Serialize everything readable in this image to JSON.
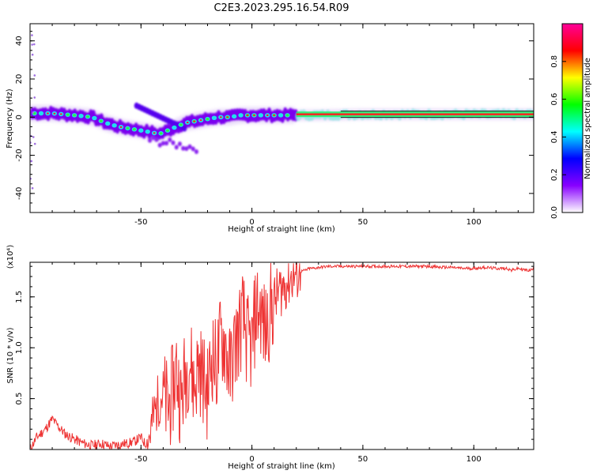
{
  "page_title": "C2E3.2023.295.16.54.R09",
  "colorbar": {
    "label": "Normalized spectral amplitude",
    "ticks": [
      {
        "value": 0.0,
        "label": "0.0"
      },
      {
        "value": 0.2,
        "label": "0.2"
      },
      {
        "value": 0.4,
        "label": "0.4"
      },
      {
        "value": 0.6,
        "label": "0.6"
      },
      {
        "value": 0.8,
        "label": "0.8"
      }
    ],
    "range": [
      0,
      1
    ],
    "colors": [
      "#ffffff",
      "#8800ff",
      "#0000ff",
      "#00ffff",
      "#00ff00",
      "#ffff00",
      "#ff0000",
      "#ff0099"
    ]
  },
  "chart_data": [
    {
      "type": "heatmap",
      "title": "C2E3.2023.295.16.54.R09",
      "xlabel": "Height of straight line (km)",
      "ylabel": "Frequency (Hz)",
      "xlim": [
        -100,
        127
      ],
      "ylim": [
        -50,
        49
      ],
      "xticks": [
        {
          "value": -50,
          "label": "-50"
        },
        {
          "value": 0,
          "label": "0"
        },
        {
          "value": 50,
          "label": "50"
        },
        {
          "value": 100,
          "label": "100"
        }
      ],
      "yticks": [
        {
          "value": -40,
          "label": "-40"
        },
        {
          "value": -20,
          "label": "-20"
        },
        {
          "value": 0,
          "label": "0"
        },
        {
          "value": 20,
          "label": "20"
        },
        {
          "value": 40,
          "label": "40"
        }
      ],
      "ridge": {
        "x": [
          -98,
          -90,
          -80,
          -72,
          -66,
          -60,
          -55,
          -50,
          -45,
          -42,
          -38,
          -34,
          -30,
          -25,
          -20,
          -15,
          -10,
          -5,
          0,
          10,
          20,
          30,
          50,
          75,
          100,
          127
        ],
        "y": [
          2,
          2,
          1,
          0,
          -3,
          -5,
          -6,
          -7,
          -8,
          -9,
          -7,
          -5,
          -3,
          -2,
          -1,
          0,
          0,
          1,
          1,
          1,
          1,
          1,
          1.5,
          1.5,
          1.5,
          1.5
        ]
      }
    },
    {
      "type": "line",
      "xlabel": "Height of straight line (km)",
      "ylabel": "SNR (10 * v/v)",
      "y_multiplier": "(x10⁴)",
      "xlim": [
        -100,
        127
      ],
      "ylim": [
        0,
        1.84
      ],
      "xticks": [
        {
          "value": -50,
          "label": "-50"
        },
        {
          "value": 0,
          "label": "0"
        },
        {
          "value": 50,
          "label": "50"
        },
        {
          "value": 100,
          "label": "100"
        }
      ],
      "yticks": [
        {
          "value": 0.5,
          "label": "0.5"
        },
        {
          "value": 1.0,
          "label": "1.0"
        },
        {
          "value": 1.5,
          "label": "1.5"
        }
      ],
      "series": [
        {
          "color": "#ee3333",
          "x": [
            -100,
            -97,
            -93,
            -90,
            -87,
            -84,
            -80,
            -76,
            -72,
            -68,
            -64,
            -60,
            -56,
            -53,
            -50,
            -48,
            -46,
            -44,
            -42,
            -40,
            -38,
            -36,
            -34,
            -32,
            -30,
            -28,
            -26,
            -24,
            -22,
            -20,
            -18,
            -16,
            -14,
            -12,
            -10,
            -8,
            -6,
            -4,
            -2,
            0,
            2,
            4,
            6,
            8,
            10,
            12,
            14,
            16,
            18,
            20,
            22,
            24,
            26,
            28,
            30,
            35,
            40,
            45,
            50,
            55,
            60,
            65,
            70,
            75,
            80,
            85,
            90,
            95,
            100,
            105,
            110,
            113,
            115,
            117,
            120,
            124,
            127
          ],
          "y": [
            0.0,
            0.12,
            0.2,
            0.3,
            0.22,
            0.15,
            0.1,
            0.06,
            0.04,
            0.06,
            0.03,
            0.05,
            0.06,
            0.08,
            0.12,
            0.05,
            0.15,
            0.35,
            0.5,
            0.55,
            0.4,
            0.55,
            0.8,
            0.45,
            0.75,
            0.9,
            0.6,
            0.85,
            0.7,
            0.55,
            0.95,
            0.8,
            1.1,
            1.05,
            0.75,
            1.0,
            1.15,
            1.3,
            1.05,
            1.0,
            1.4,
            1.35,
            1.15,
            1.35,
            1.45,
            1.55,
            1.6,
            1.65,
            1.7,
            1.72,
            1.75,
            1.76,
            1.78,
            1.78,
            1.79,
            1.8,
            1.8,
            1.8,
            1.8,
            1.8,
            1.8,
            1.8,
            1.8,
            1.8,
            1.8,
            1.79,
            1.79,
            1.78,
            1.78,
            1.79,
            1.78,
            1.78,
            1.78,
            1.76,
            1.78,
            1.76,
            1.77
          ]
        }
      ]
    }
  ]
}
